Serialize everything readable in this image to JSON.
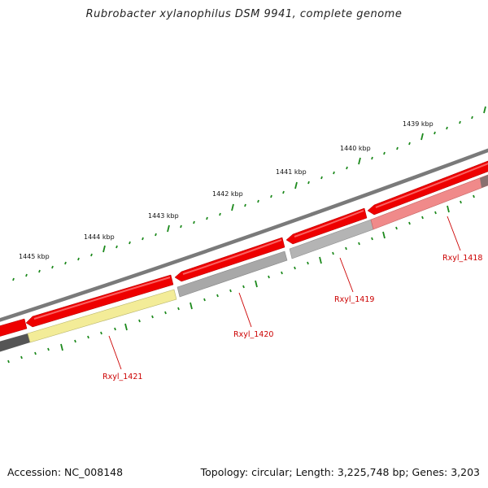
{
  "title": "Rubrobacter xylanophilus DSM 9941, complete genome",
  "footer": {
    "accession": "Accession: NC_008148",
    "summary": "Topology: circular; Length: 3,225,748 bp; Genes: 3,203"
  },
  "colors": {
    "backbone": "#7a7a7a",
    "cds_forward": "#ee0000",
    "gene_grey": "#a8a8a8",
    "gene_dark": "#555555",
    "gene_yellow": "#f3ec98",
    "gene_pink": "#f07a7a",
    "tick": "#1d8a1d",
    "gene_label": "#cc0000"
  },
  "scale_labels": [
    {
      "label": "1439 kbp",
      "kbp": 1439
    },
    {
      "label": "1440 kbp",
      "kbp": 1440
    },
    {
      "label": "1441 kbp",
      "kbp": 1441
    },
    {
      "label": "1442 kbp",
      "kbp": 1442
    },
    {
      "label": "1443 kbp",
      "kbp": 1443
    },
    {
      "label": "1444 kbp",
      "kbp": 1444
    },
    {
      "label": "1445 kbp",
      "kbp": 1445
    }
  ],
  "gene_labels": [
    {
      "label": "Rxyl_1418"
    },
    {
      "label": "Rxyl_1419"
    },
    {
      "label": "Rxyl_1420"
    },
    {
      "label": "Rxyl_1421"
    }
  ]
}
